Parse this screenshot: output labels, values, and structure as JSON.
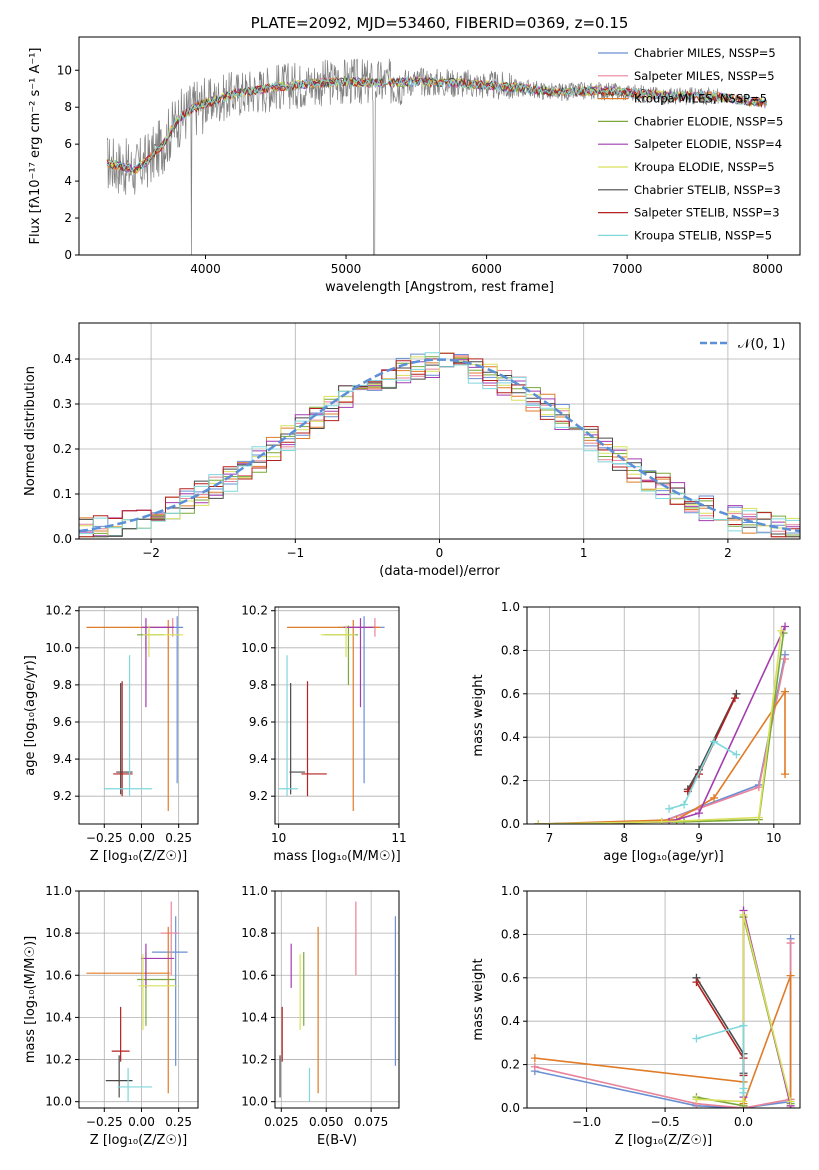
{
  "chart_data": [
    {
      "id": "spectrum",
      "type": "line",
      "title": "PLATE=2092, MJD=53460, FIBERID=0369, z=0.15",
      "xlabel": "wavelength [Angstrom, rest frame]",
      "ylabel": "Flux [fλ10⁻¹⁷ erg cm⁻² s⁻¹ A⁻¹]",
      "xlim": [
        3100,
        8230
      ],
      "ylim": [
        0,
        11.8
      ],
      "xticks": [
        4000,
        5000,
        6000,
        7000,
        8000
      ],
      "yticks": [
        0,
        2,
        4,
        6,
        8,
        10
      ],
      "grid": false,
      "legend_position": "top-right",
      "x_range": [
        3300,
        8000
      ],
      "continuum": [
        [
          3300,
          5.0
        ],
        [
          3500,
          4.6
        ],
        [
          3600,
          5.2
        ],
        [
          3700,
          6.0
        ],
        [
          3800,
          7.3
        ],
        [
          3900,
          7.9
        ],
        [
          4000,
          8.2
        ],
        [
          4200,
          8.7
        ],
        [
          4500,
          9.1
        ],
        [
          4800,
          9.3
        ],
        [
          5000,
          9.4
        ],
        [
          5200,
          9.3
        ],
        [
          5500,
          9.4
        ],
        [
          5800,
          9.3
        ],
        [
          6000,
          9.2
        ],
        [
          6300,
          9.0
        ],
        [
          6500,
          8.8
        ],
        [
          6800,
          8.9
        ],
        [
          7000,
          8.8
        ],
        [
          7300,
          8.6
        ],
        [
          7600,
          8.6
        ],
        [
          8000,
          8.2
        ]
      ],
      "series": [
        {
          "name": "Chabrier MILES, N_SSP=5",
          "color": "#6a8fd4"
        },
        {
          "name": "Salpeter MILES, N_SSP=5",
          "color": "#e8849a"
        },
        {
          "name": "Kroupa MILES, N_SSP=5",
          "color": "#e07b28"
        },
        {
          "name": "Chabrier ELODIE, N_SSP=5",
          "color": "#7aa83a"
        },
        {
          "name": "Salpeter ELODIE, N_SSP=4",
          "color": "#a33db0"
        },
        {
          "name": "Kroupa ELODIE, N_SSP=5",
          "color": "#d8e05a"
        },
        {
          "name": "Chabrier STELIB, N_SSP=3",
          "color": "#4a4a4a"
        },
        {
          "name": "Salpeter STELIB, N_SSP=3",
          "color": "#b52020"
        },
        {
          "name": "Kroupa STELIB, N_SSP=5",
          "color": "#7fd8dc"
        }
      ],
      "data_color": "#808080"
    },
    {
      "id": "residuals",
      "type": "histogram",
      "xlabel": "(data-model)/error",
      "ylabel": "Normed distribution",
      "xlim": [
        -2.5,
        2.5
      ],
      "ylim": [
        0,
        0.48
      ],
      "xticks": [
        -2,
        -1,
        0,
        1,
        2
      ],
      "yticks": [
        0.0,
        0.1,
        0.2,
        0.3,
        0.4
      ],
      "grid": true,
      "legend_position": "top-right",
      "reference_curve": {
        "name": "𝒩(0, 1)",
        "color": "#5b8fd6",
        "style": "dashed"
      },
      "bin_width": 0.1
    },
    {
      "id": "age_vs_Z",
      "type": "errorbar",
      "xlabel": "Z [log₁₀(Z/Z☉)]",
      "ylabel": "age  [log₁₀(age/yr)]",
      "xlim": [
        -0.42,
        0.38
      ],
      "ylim": [
        9.05,
        10.22
      ],
      "xticks": [
        -0.25,
        0.0,
        0.25
      ],
      "yticks": [
        9.2,
        9.4,
        9.6,
        9.8,
        10.0,
        10.2
      ],
      "grid": true,
      "points": [
        {
          "x": 0.24,
          "y": 10.11,
          "xerr": [
            0.1,
            0.04
          ],
          "yerr": [
            0.84,
            0.06
          ],
          "color": "#6a8fd4"
        },
        {
          "x": 0.21,
          "y": 10.11,
          "xerr": [
            0.07,
            0.01
          ],
          "yerr": [
            0.05,
            0.05
          ],
          "color": "#e8849a"
        },
        {
          "x": 0.18,
          "y": 10.11,
          "xerr": [
            0.55,
            0.02
          ],
          "yerr": [
            0.99,
            0.04
          ],
          "color": "#e07b28"
        },
        {
          "x": 0.03,
          "y": 10.07,
          "xerr": [
            0.06,
            0.12
          ],
          "yerr": [
            0.08,
            0.05
          ],
          "color": "#7aa83a"
        },
        {
          "x": 0.03,
          "y": 10.11,
          "xerr": [
            0.03,
            0.19
          ],
          "yerr": [
            0.43,
            0.05
          ],
          "color": "#a33db0"
        },
        {
          "x": 0.05,
          "y": 10.07,
          "xerr": [
            0.04,
            0.23
          ],
          "yerr": [
            0.12,
            0.05
          ],
          "color": "#d8e05a"
        },
        {
          "x": -0.14,
          "y": 9.33,
          "xerr": [
            0.03,
            0.08
          ],
          "yerr": [
            0.12,
            0.48
          ],
          "color": "#4a4a4a"
        },
        {
          "x": -0.13,
          "y": 9.32,
          "xerr": [
            0.06,
            0.07
          ],
          "yerr": [
            0.12,
            0.5
          ],
          "color": "#b52020"
        },
        {
          "x": -0.08,
          "y": 9.24,
          "xerr": [
            0.17,
            0.15
          ],
          "yerr": [
            0.04,
            0.72
          ],
          "color": "#7fd8dc"
        }
      ]
    },
    {
      "id": "age_vs_mass",
      "type": "errorbar",
      "xlabel": "mass [log₁₀(M/M☉)]",
      "ylabel": "",
      "xlim": [
        9.97,
        11.0
      ],
      "ylim": [
        9.05,
        10.22
      ],
      "xticks": [
        10,
        11
      ],
      "yticks": [
        9.2,
        9.4,
        9.6,
        9.8,
        10.0,
        10.2
      ],
      "grid": true,
      "points": [
        {
          "x": 10.71,
          "y": 10.11,
          "xerr": [
            0.22,
            0.17
          ],
          "yerr": [
            0.84,
            0.06
          ],
          "color": "#6a8fd4"
        },
        {
          "x": 10.8,
          "y": 10.11,
          "xerr": [
            0.04,
            0.05
          ],
          "yerr": [
            0.05,
            0.05
          ],
          "color": "#e8849a"
        },
        {
          "x": 10.62,
          "y": 10.11,
          "xerr": [
            0.55,
            0.22
          ],
          "yerr": [
            0.99,
            0.04
          ],
          "color": "#e07b28"
        },
        {
          "x": 10.58,
          "y": 10.07,
          "xerr": [
            0.2,
            0.08
          ],
          "yerr": [
            0.27,
            0.05
          ],
          "color": "#7aa83a"
        },
        {
          "x": 10.68,
          "y": 10.11,
          "xerr": [
            0.14,
            0.11
          ],
          "yerr": [
            0.43,
            0.05
          ],
          "color": "#a33db0"
        },
        {
          "x": 10.56,
          "y": 10.07,
          "xerr": [
            0.21,
            0.08
          ],
          "yerr": [
            0.12,
            0.05
          ],
          "color": "#d8e05a"
        },
        {
          "x": 10.1,
          "y": 9.33,
          "xerr": [
            0.01,
            0.12
          ],
          "yerr": [
            0.12,
            0.48
          ],
          "color": "#4a4a4a"
        },
        {
          "x": 10.24,
          "y": 9.32,
          "xerr": [
            0.05,
            0.16
          ],
          "yerr": [
            0.12,
            0.5
          ],
          "color": "#b52020"
        },
        {
          "x": 10.07,
          "y": 9.24,
          "xerr": [
            0.07,
            0.09
          ],
          "yerr": [
            0.04,
            0.72
          ],
          "color": "#7fd8dc"
        }
      ]
    },
    {
      "id": "weight_vs_age",
      "type": "line",
      "xlabel": "age  [log₁₀(age/yr)]",
      "ylabel": "mass weight",
      "xlim": [
        6.7,
        10.35
      ],
      "ylim": [
        0,
        1.0
      ],
      "xticks": [
        7,
        8,
        9,
        10
      ],
      "yticks": [
        0.0,
        0.2,
        0.4,
        0.6,
        0.8,
        1.0
      ],
      "grid": true,
      "series": [
        {
          "color": "#6a8fd4",
          "x": [
            6.85,
            8.5,
            9.8,
            10.15
          ],
          "y": [
            0.0,
            0.01,
            0.18,
            0.78
          ]
        },
        {
          "color": "#e8849a",
          "x": [
            6.85,
            8.5,
            9.8,
            10.15
          ],
          "y": [
            0.0,
            0.01,
            0.17,
            0.76
          ]
        },
        {
          "color": "#e07b28",
          "x": [
            6.85,
            8.7,
            9.2,
            10.15,
            10.15
          ],
          "y": [
            0.0,
            0.02,
            0.12,
            0.61,
            0.23
          ]
        },
        {
          "color": "#7aa83a",
          "x": [
            6.85,
            8.8,
            9.8,
            10.13
          ],
          "y": [
            0.0,
            0.01,
            0.02,
            0.88
          ]
        },
        {
          "color": "#a33db0",
          "x": [
            6.85,
            8.6,
            9.0,
            10.15
          ],
          "y": [
            0.0,
            0.01,
            0.05,
            0.91
          ]
        },
        {
          "color": "#d8e05a",
          "x": [
            6.85,
            8.5,
            9.8,
            10.1
          ],
          "y": [
            0.0,
            0.01,
            0.03,
            0.89
          ]
        },
        {
          "color": "#4a4a4a",
          "x": [
            8.85,
            9.0,
            9.5
          ],
          "y": [
            0.16,
            0.25,
            0.6
          ]
        },
        {
          "color": "#b52020",
          "x": [
            8.85,
            9.0,
            9.48
          ],
          "y": [
            0.15,
            0.23,
            0.58
          ]
        },
        {
          "color": "#7fd8dc",
          "x": [
            8.6,
            8.8,
            9.2,
            9.5
          ],
          "y": [
            0.07,
            0.09,
            0.38,
            0.32
          ]
        }
      ]
    },
    {
      "id": "mass_vs_Z",
      "type": "errorbar",
      "xlabel": "Z [log₁₀(Z/Z☉)]",
      "ylabel": "mass [log₁₀(M/M☉)]",
      "xlim": [
        -0.42,
        0.38
      ],
      "ylim": [
        9.97,
        11.0
      ],
      "xticks": [
        -0.25,
        0.0,
        0.25
      ],
      "yticks": [
        10.0,
        10.2,
        10.4,
        10.6,
        10.8,
        11.0
      ],
      "grid": true,
      "points": [
        {
          "x": 0.23,
          "y": 10.71,
          "xerr": [
            0.16,
            0.08
          ],
          "yerr": [
            0.54,
            0.17
          ],
          "color": "#6a8fd4"
        },
        {
          "x": 0.2,
          "y": 10.8,
          "xerr": [
            0.07,
            0.05
          ],
          "yerr": [
            0.2,
            0.15
          ],
          "color": "#e8849a"
        },
        {
          "x": 0.18,
          "y": 10.61,
          "xerr": [
            0.55,
            0.01
          ],
          "yerr": [
            0.57,
            0.22
          ],
          "color": "#e07b28"
        },
        {
          "x": 0.03,
          "y": 10.58,
          "xerr": [
            0.06,
            0.2
          ],
          "yerr": [
            0.22,
            0.13
          ],
          "color": "#7aa83a"
        },
        {
          "x": 0.03,
          "y": 10.68,
          "xerr": [
            0.03,
            0.19
          ],
          "yerr": [
            0.14,
            0.07
          ],
          "color": "#a33db0"
        },
        {
          "x": 0.01,
          "y": 10.55,
          "xerr": [
            0.03,
            0.23
          ],
          "yerr": [
            0.21,
            0.15
          ],
          "color": "#d8e05a"
        },
        {
          "x": -0.15,
          "y": 10.1,
          "xerr": [
            0.09,
            0.09
          ],
          "yerr": [
            0.08,
            0.12
          ],
          "color": "#4a4a4a"
        },
        {
          "x": -0.14,
          "y": 10.24,
          "xerr": [
            0.06,
            0.06
          ],
          "yerr": [
            0.05,
            0.21
          ],
          "color": "#b52020"
        },
        {
          "x": -0.09,
          "y": 10.07,
          "xerr": [
            0.07,
            0.16
          ],
          "yerr": [
            0.07,
            0.09
          ],
          "color": "#7fd8dc"
        }
      ]
    },
    {
      "id": "mass_vs_ebv",
      "type": "errorbar",
      "xlabel": "E(B-V)",
      "ylabel": "",
      "xlim": [
        0.0215,
        0.0905
      ],
      "ylim": [
        9.97,
        11.0
      ],
      "xticks": [
        0.025,
        0.05,
        0.075
      ],
      "xtick_labels": [
        "0.025",
        "0.050",
        "0.075"
      ],
      "yticks": [
        10.0,
        10.2,
        10.4,
        10.6,
        10.8,
        11.0
      ],
      "grid": true,
      "points": [
        {
          "x": 0.0885,
          "y": 10.71,
          "yerr": [
            0.54,
            0.17
          ],
          "color": "#6a8fd4"
        },
        {
          "x": 0.0665,
          "y": 10.8,
          "yerr": [
            0.2,
            0.15
          ],
          "color": "#e8849a"
        },
        {
          "x": 0.0455,
          "y": 10.61,
          "yerr": [
            0.57,
            0.22
          ],
          "color": "#e07b28"
        },
        {
          "x": 0.0375,
          "y": 10.58,
          "yerr": [
            0.22,
            0.13
          ],
          "color": "#7aa83a"
        },
        {
          "x": 0.0305,
          "y": 10.68,
          "yerr": [
            0.14,
            0.07
          ],
          "color": "#a33db0"
        },
        {
          "x": 0.0355,
          "y": 10.55,
          "yerr": [
            0.21,
            0.15
          ],
          "color": "#d8e05a"
        },
        {
          "x": 0.0243,
          "y": 10.1,
          "yerr": [
            0.08,
            0.12
          ],
          "color": "#4a4a4a"
        },
        {
          "x": 0.0255,
          "y": 10.24,
          "yerr": [
            0.05,
            0.21
          ],
          "color": "#b52020"
        },
        {
          "x": 0.0407,
          "y": 10.07,
          "yerr": [
            0.07,
            0.09
          ],
          "color": "#7fd8dc"
        }
      ]
    },
    {
      "id": "weight_vs_Z",
      "type": "line",
      "xlabel": "Z [log₁₀(Z/Z☉)]",
      "ylabel": "mass weight",
      "xlim": [
        -1.38,
        0.36
      ],
      "ylim": [
        0,
        1.0
      ],
      "xticks": [
        -1.0,
        -0.5,
        0.0
      ],
      "yticks": [
        0.0,
        0.2,
        0.4,
        0.6,
        0.8,
        1.0
      ],
      "grid": true,
      "series": [
        {
          "color": "#6a8fd4",
          "x": [
            -1.33,
            -0.3,
            0.0,
            0.3,
            0.3
          ],
          "y": [
            0.17,
            0.01,
            0.0,
            0.03,
            0.78
          ]
        },
        {
          "color": "#e8849a",
          "x": [
            -1.33,
            -0.3,
            0.0,
            0.3,
            0.3
          ],
          "y": [
            0.19,
            0.02,
            0.0,
            0.04,
            0.76
          ]
        },
        {
          "color": "#e07b28",
          "x": [
            -1.33,
            0.0,
            0.0,
            0.3,
            0.3
          ],
          "y": [
            0.23,
            0.12,
            0.02,
            0.61,
            0.0
          ]
        },
        {
          "color": "#7aa83a",
          "x": [
            -0.3,
            0.0,
            0.0,
            0.3
          ],
          "y": [
            0.05,
            0.01,
            0.88,
            0.02
          ]
        },
        {
          "color": "#a33db0",
          "x": [
            0.0,
            0.0,
            0.3
          ],
          "y": [
            0.05,
            0.91,
            0.01
          ]
        },
        {
          "color": "#d8e05a",
          "x": [
            -0.3,
            0.0,
            0.0,
            0.3
          ],
          "y": [
            0.04,
            0.03,
            0.89,
            0.03
          ]
        },
        {
          "color": "#4a4a4a",
          "x": [
            -0.3,
            0.0,
            0.0
          ],
          "y": [
            0.6,
            0.25,
            0.16
          ]
        },
        {
          "color": "#b52020",
          "x": [
            -0.3,
            0.0,
            0.0
          ],
          "y": [
            0.58,
            0.23,
            0.15
          ]
        },
        {
          "color": "#7fd8dc",
          "x": [
            -0.3,
            0.0,
            0.0,
            0.0
          ],
          "y": [
            0.32,
            0.38,
            0.09,
            0.07
          ]
        }
      ]
    }
  ]
}
